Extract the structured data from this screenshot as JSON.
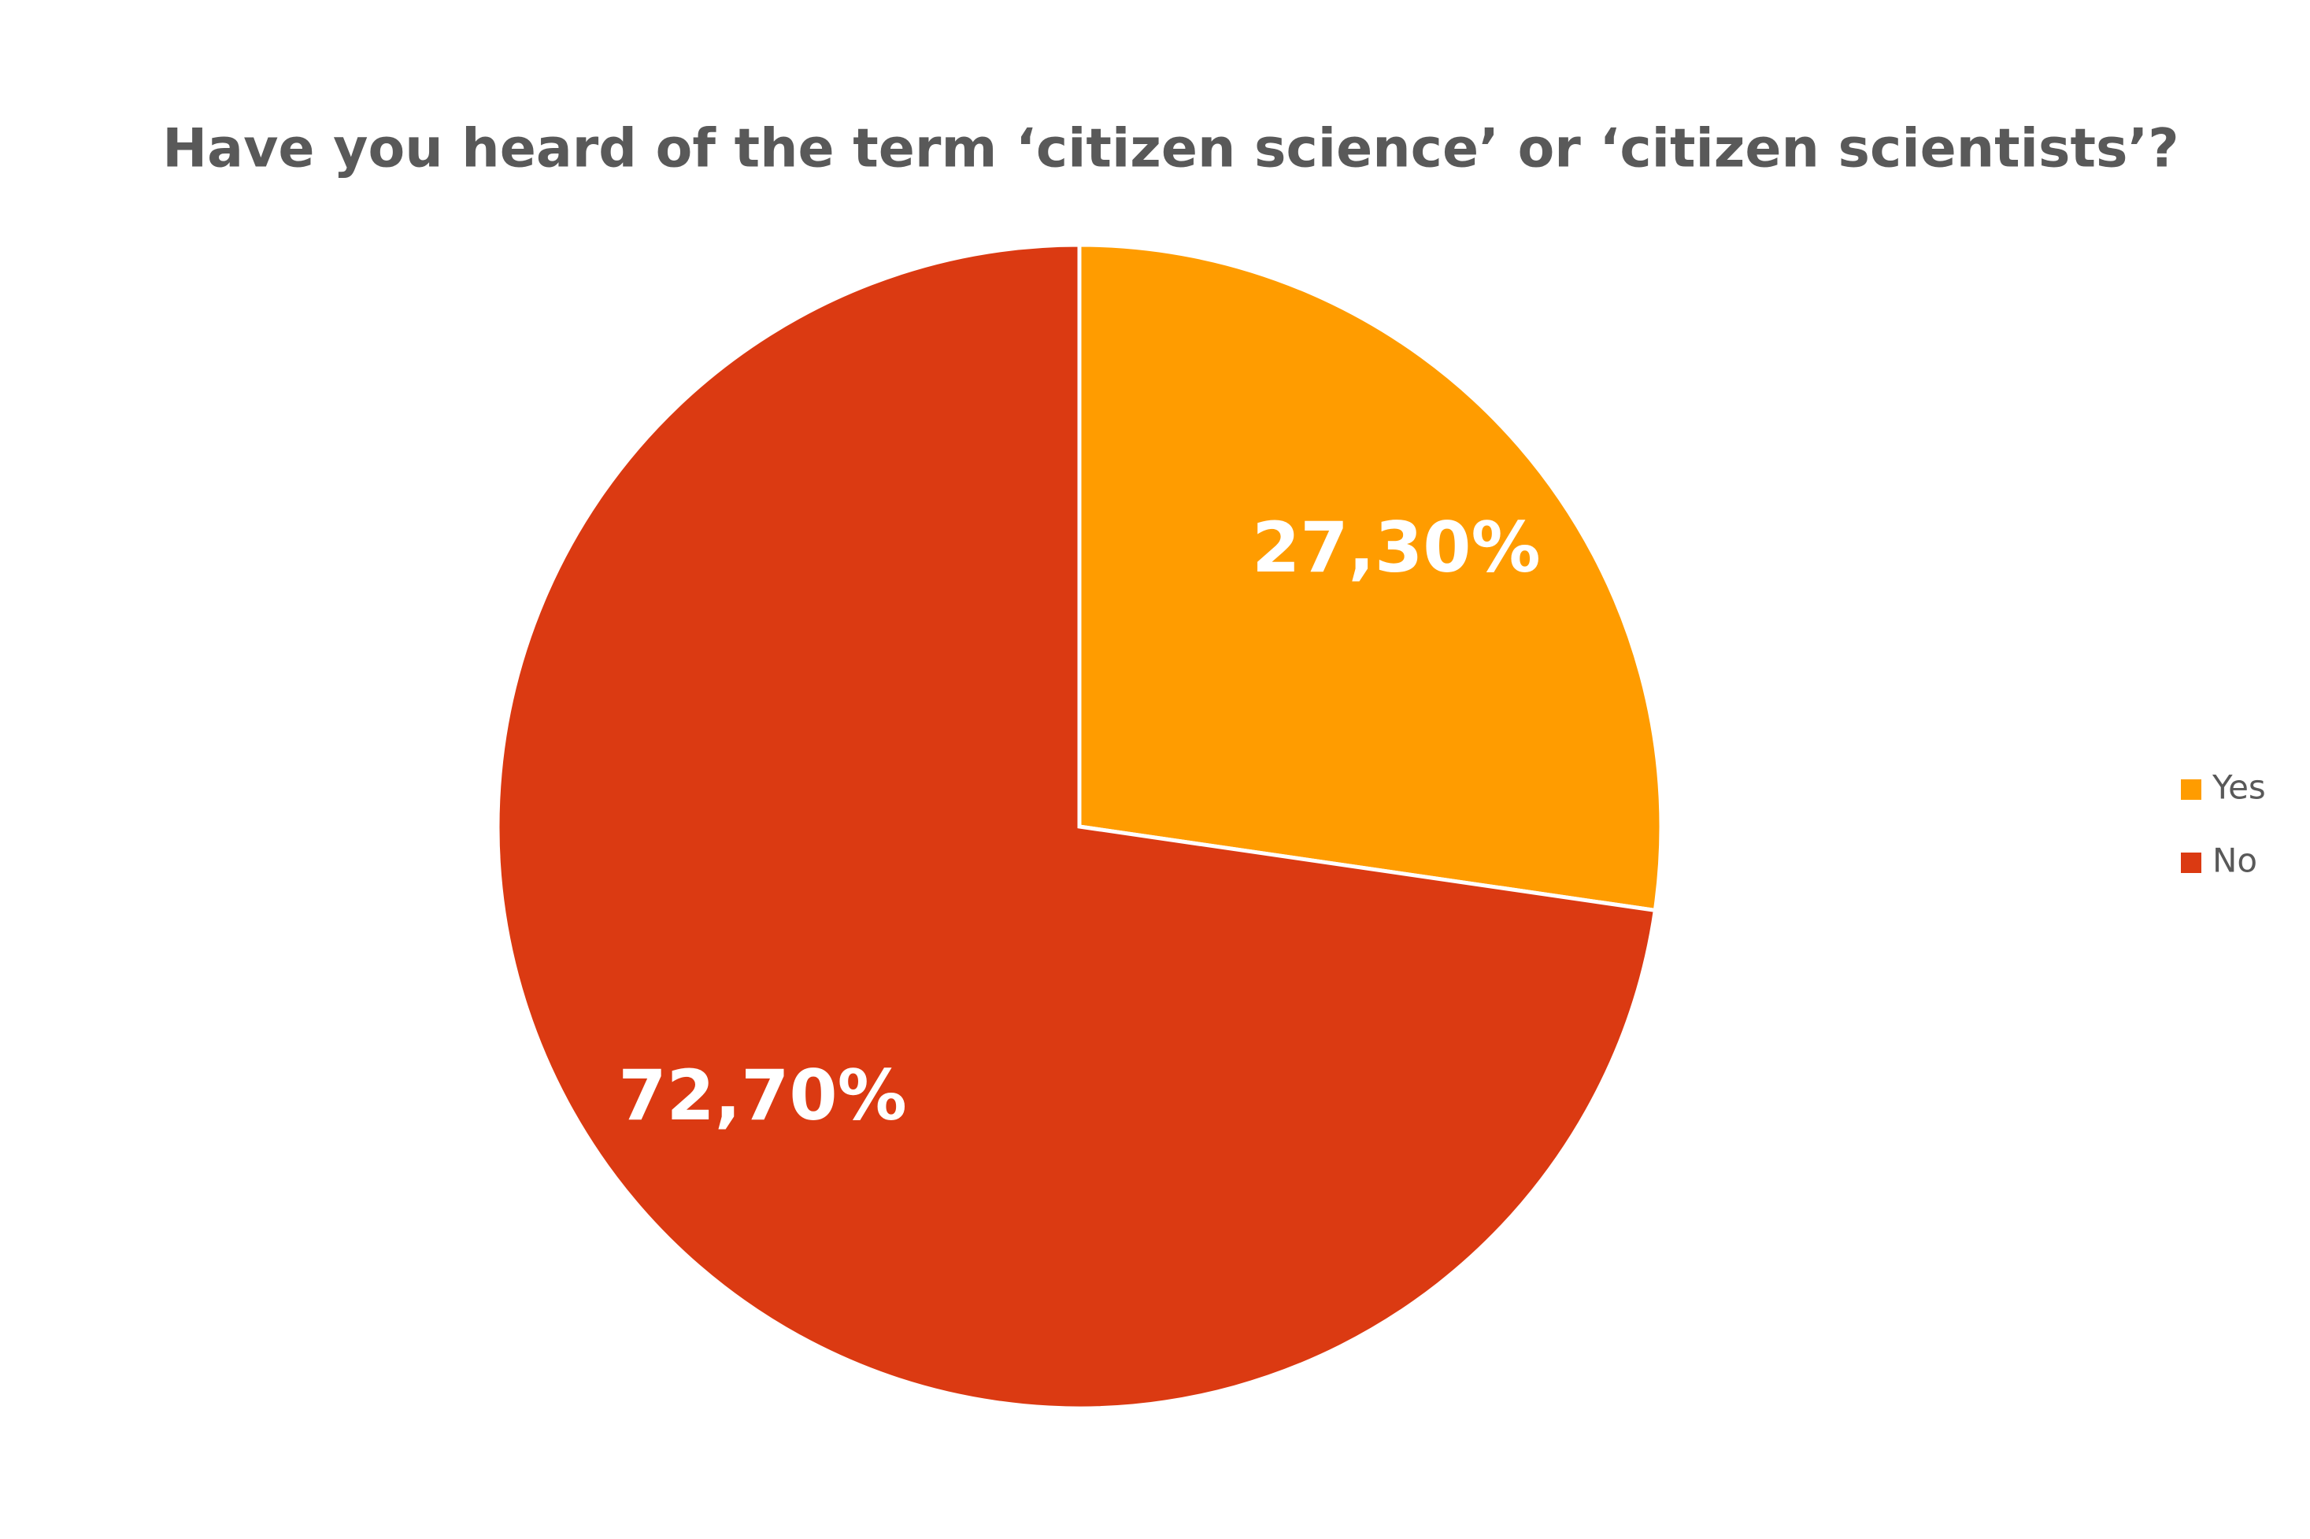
{
  "chart_data": {
    "type": "pie",
    "title": "Have you heard of the term ‘citizen science’ or ‘citizen scientists’?",
    "categories": [
      "Yes",
      "No"
    ],
    "values": [
      27.3,
      72.7
    ],
    "value_labels": [
      "27,30%",
      "72,70%"
    ],
    "colors": [
      "#ff9c00",
      "#db3a12"
    ],
    "legend": "right"
  }
}
